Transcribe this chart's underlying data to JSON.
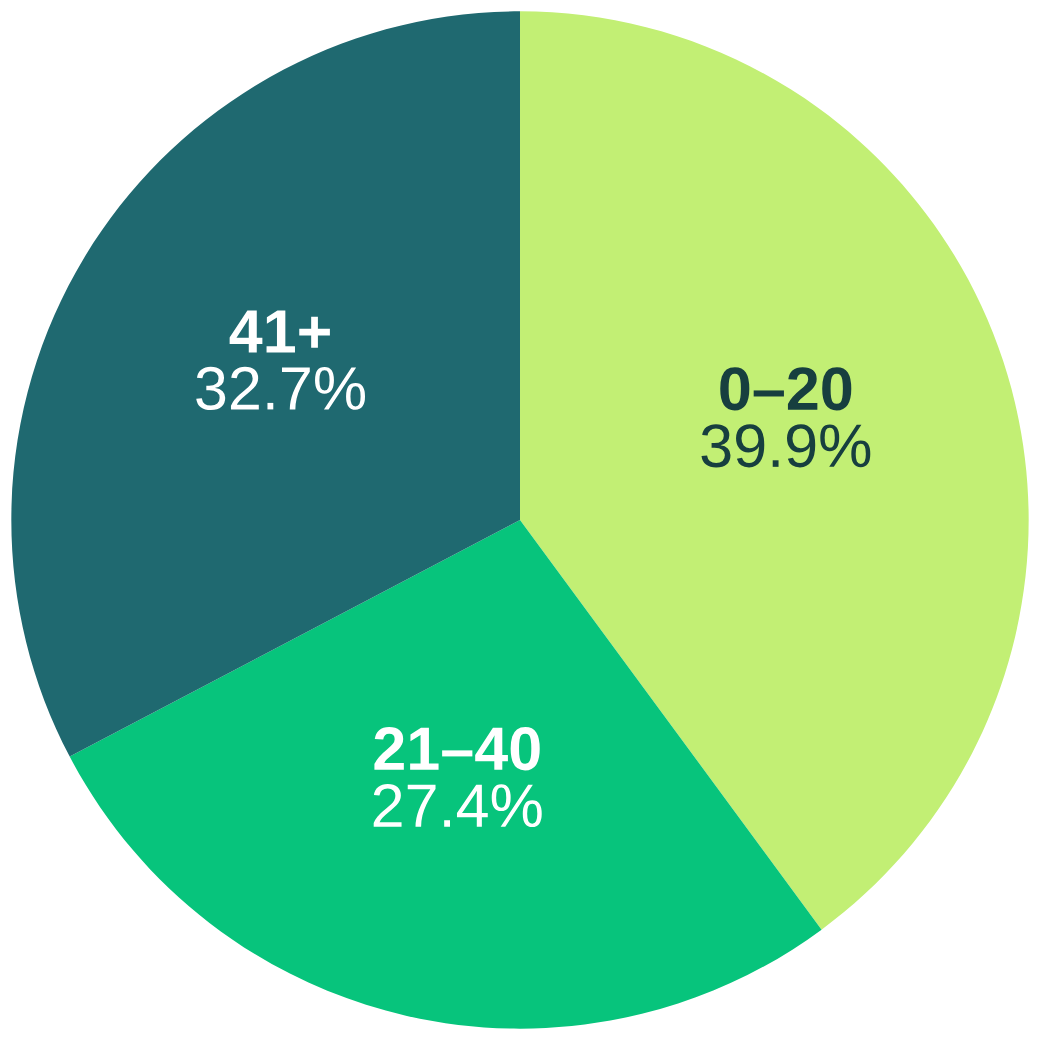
{
  "chart_data": {
    "type": "pie",
    "categories": [
      "0–20",
      "21–40",
      "41+"
    ],
    "values": [
      39.9,
      27.4,
      32.7
    ],
    "value_labels": [
      "39.9%",
      "27.4%",
      "32.7%"
    ],
    "colors": [
      "#c2ef74",
      "#07c47c",
      "#1f6970"
    ]
  }
}
